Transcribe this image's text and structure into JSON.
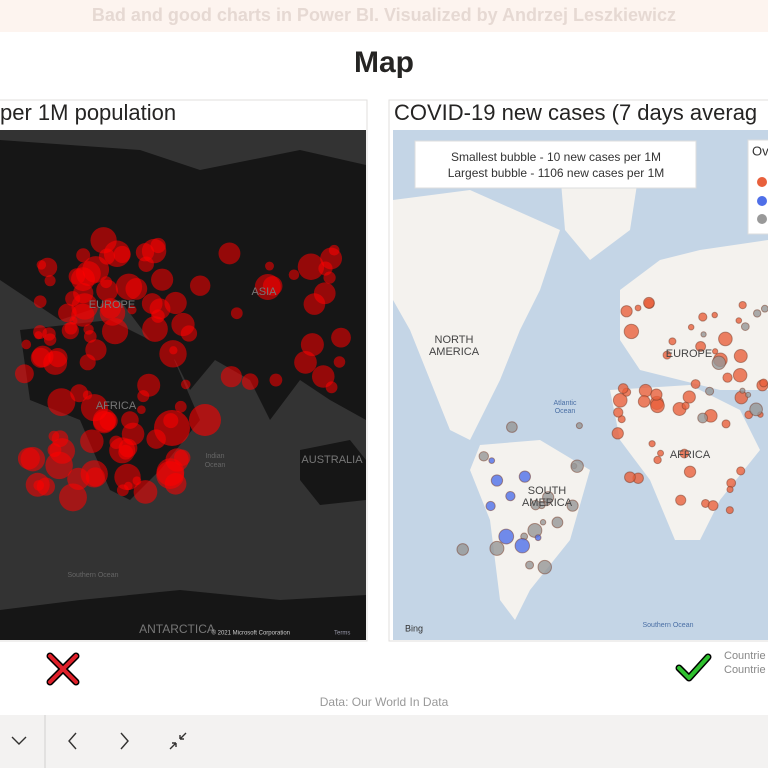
{
  "header": {
    "banner": "Bad and good charts in Power BI. Visualized by Andrzej Leszkiewicz",
    "title": "Map"
  },
  "left_visual": {
    "title": "per 1M population",
    "map_labels": [
      "ASIA",
      "EUROPE",
      "AFRICA",
      "AUSTRALIA",
      "ANTARCTICA",
      "Indian",
      "Ocean",
      "Southern Ocean"
    ],
    "copyright": "© 2021 Microsoft Corporation",
    "terms": "Terms"
  },
  "right_visual": {
    "title": "COVID-19 new cases (7 days averag",
    "note": [
      "Smallest bubble - 10 new cases per 1M",
      "Largest bubble - 1106 new cases per 1M"
    ],
    "legend_title": "Ov",
    "map_labels": [
      "NORTH",
      "AMERICA",
      "EUROPE",
      "AFRICA",
      "SOUTH",
      "AMERICA",
      "Atlantic",
      "Ocean",
      "Southern Ocean"
    ],
    "bing": "Bing"
  },
  "footer": {
    "countries": [
      "Countrie",
      "Countrie"
    ],
    "source": "Data: Our World In Data"
  }
}
